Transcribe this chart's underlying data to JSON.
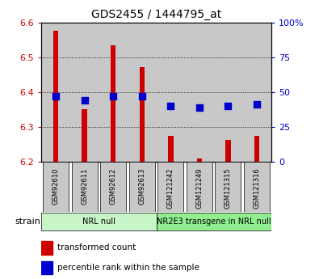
{
  "title": "GDS2455 / 1444795_at",
  "samples": [
    "GSM92610",
    "GSM92611",
    "GSM92612",
    "GSM92613",
    "GSM121242",
    "GSM121249",
    "GSM121315",
    "GSM121316"
  ],
  "transformed_counts": [
    6.575,
    6.352,
    6.535,
    6.472,
    6.275,
    6.21,
    6.262,
    6.275
  ],
  "percentile_ranks": [
    47,
    44,
    47,
    47,
    40,
    39,
    40,
    41
  ],
  "ylim_left": [
    6.2,
    6.6
  ],
  "ylim_right": [
    0,
    100
  ],
  "yticks_left": [
    6.2,
    6.3,
    6.4,
    6.5,
    6.6
  ],
  "yticks_right": [
    0,
    25,
    50,
    75,
    100
  ],
  "groups": [
    {
      "label": "NRL null",
      "start": 0,
      "end": 4,
      "color": "#c8f5c8"
    },
    {
      "label": "NR2E3 transgene in NRL null",
      "start": 4,
      "end": 8,
      "color": "#90ee90"
    }
  ],
  "bar_color": "#cc0000",
  "dot_color": "#0000cc",
  "bar_bottom": 6.2,
  "sample_bg": "#c8c8c8",
  "legend_items": [
    {
      "label": "transformed count",
      "color": "#cc0000"
    },
    {
      "label": "percentile rank within the sample",
      "color": "#0000cc"
    }
  ],
  "left_tick_color": "#cc0000",
  "right_tick_color": "#0000cc",
  "right_tick_labels": [
    "0",
    "25",
    "50",
    "75",
    "100%"
  ]
}
